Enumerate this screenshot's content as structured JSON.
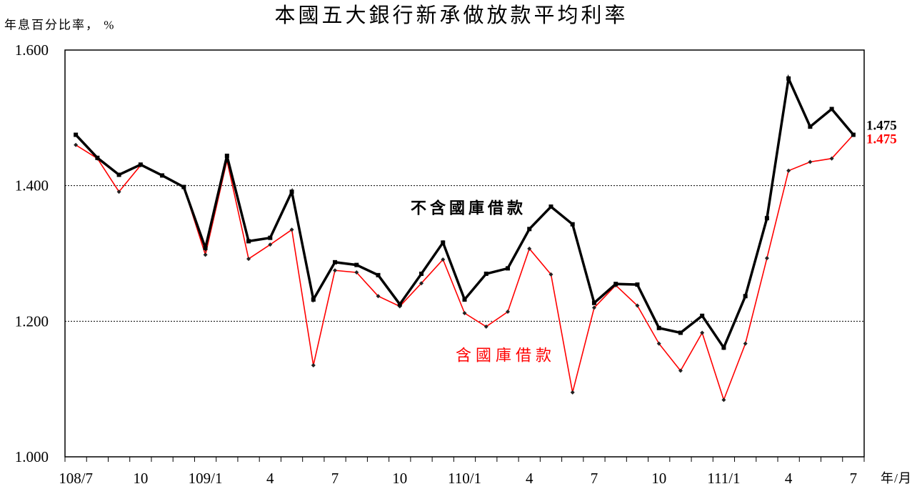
{
  "chart_data": {
    "type": "line",
    "title": "本國五大銀行新承做放款平均利率",
    "ylabel": "年息百分比率， %",
    "xlabel": "年/月",
    "ylim": [
      1.0,
      1.6
    ],
    "yticks": [
      "1.000",
      "1.200",
      "1.400",
      "1.600"
    ],
    "grid": true,
    "categories": [
      "108/7",
      "",
      "",
      "10",
      "",
      "",
      "109/1",
      "",
      "",
      "4",
      "",
      "",
      "7",
      "",
      "",
      "10",
      "",
      "",
      "110/1",
      "",
      "",
      "4",
      "",
      "",
      "7",
      "",
      "",
      "10",
      "",
      "",
      "111/1",
      "",
      "",
      "4",
      "",
      "",
      "7"
    ],
    "series": [
      {
        "name": "不含國庫借款",
        "color": "#000000",
        "end_label": "1.475",
        "values": [
          1.475,
          1.441,
          1.416,
          1.431,
          1.415,
          1.398,
          1.308,
          1.444,
          1.318,
          1.323,
          1.391,
          1.232,
          1.287,
          1.283,
          1.268,
          1.225,
          1.27,
          1.316,
          1.232,
          1.27,
          1.278,
          1.336,
          1.369,
          1.343,
          1.227,
          1.255,
          1.254,
          1.19,
          1.183,
          1.208,
          1.161,
          1.237,
          1.352,
          1.558,
          1.487,
          1.513,
          1.475
        ]
      },
      {
        "name": "含國庫借款",
        "color": "#ff0000",
        "end_label": "1.475",
        "values": [
          1.46,
          1.44,
          1.391,
          1.43,
          1.415,
          1.398,
          1.298,
          1.437,
          1.292,
          1.313,
          1.335,
          1.135,
          1.275,
          1.272,
          1.237,
          1.222,
          1.256,
          1.291,
          1.212,
          1.192,
          1.214,
          1.307,
          1.269,
          1.095,
          1.22,
          1.253,
          1.223,
          1.167,
          1.127,
          1.183,
          1.084,
          1.167,
          1.293,
          1.422,
          1.435,
          1.44,
          1.475
        ]
      }
    ]
  }
}
